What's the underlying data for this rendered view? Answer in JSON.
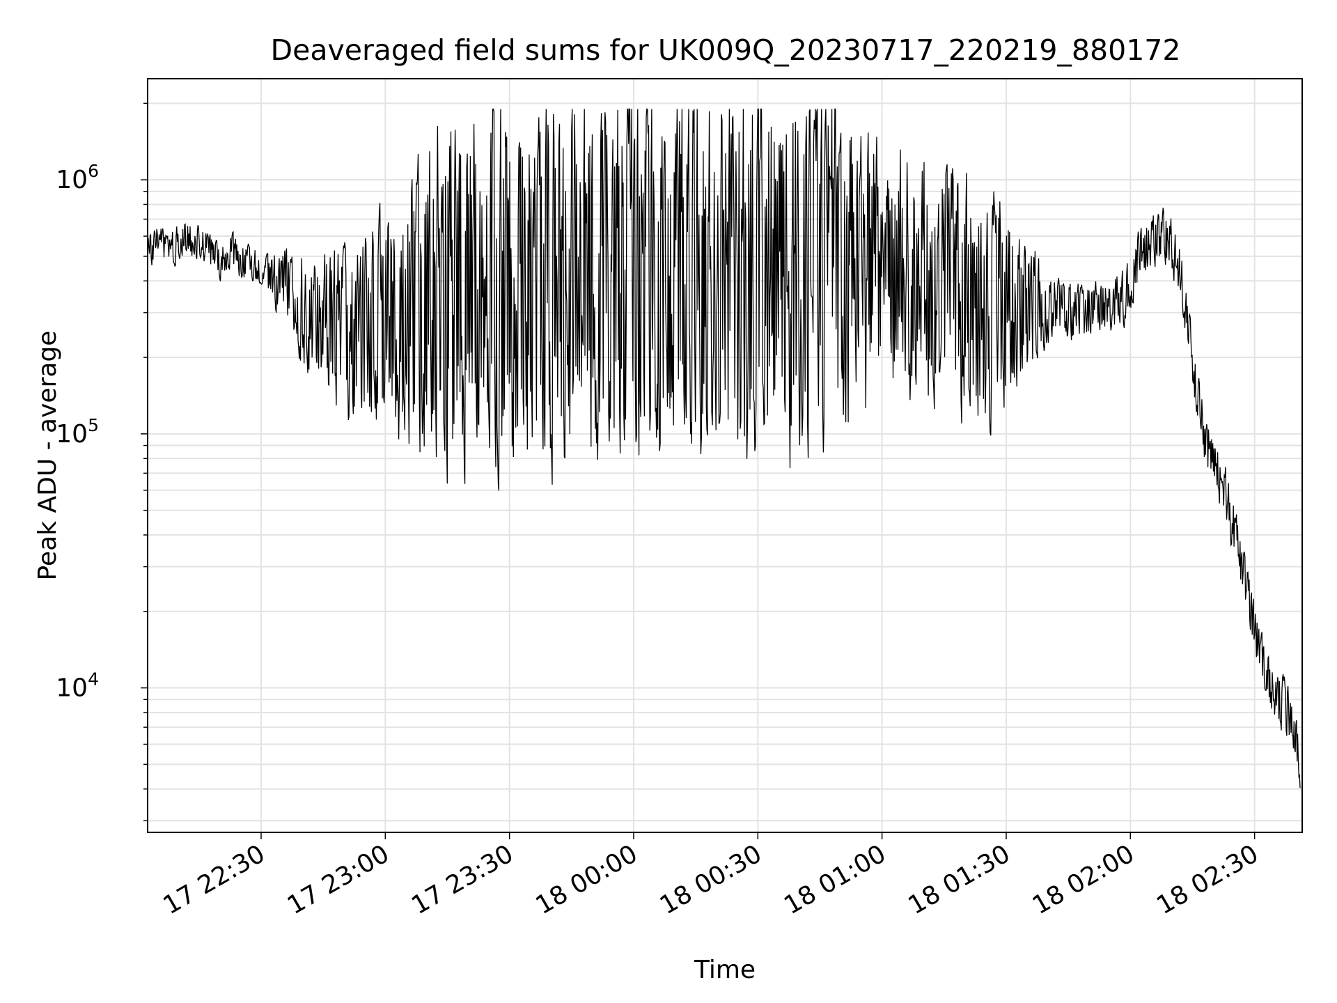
{
  "chart_data": {
    "type": "line",
    "title": "Deaveraged field sums for UK009Q_20230717_220219_880172",
    "xlabel": "Time",
    "ylabel": "Peak ADU - average",
    "yscale": "log",
    "xlim": [
      "2023-07-17 22:02:35",
      "2023-07-18 02:41:30"
    ],
    "ylim": [
      2700,
      2500000
    ],
    "x_ticks": [
      "17 22:30",
      "17 23:00",
      "17 23:30",
      "18 00:00",
      "18 00:30",
      "18 01:00",
      "18 01:30",
      "18 02:00",
      "18 02:30"
    ],
    "y_ticks": [
      {
        "base": "10",
        "exp": "4"
      },
      {
        "base": "10",
        "exp": "5"
      },
      {
        "base": "10",
        "exp": "6"
      }
    ],
    "grid": true,
    "line_color": "#000000",
    "series": [
      {
        "x": [
          "2023-07-17 22:02",
          "2023-07-17 22:05",
          "2023-07-17 22:08",
          "2023-07-17 22:11",
          "2023-07-17 22:14",
          "2023-07-17 22:17",
          "2023-07-17 22:20",
          "2023-07-17 22:23",
          "2023-07-17 22:26",
          "2023-07-17 22:29",
          "2023-07-17 22:32",
          "2023-07-17 22:35",
          "2023-07-17 22:38",
          "2023-07-17 22:41",
          "2023-07-17 22:44",
          "2023-07-17 22:47",
          "2023-07-17 22:50",
          "2023-07-17 22:53",
          "2023-07-17 22:56",
          "2023-07-17 22:59",
          "2023-07-17 23:02",
          "2023-07-17 23:05",
          "2023-07-17 23:08",
          "2023-07-17 23:11",
          "2023-07-17 23:14",
          "2023-07-17 23:17",
          "2023-07-17 23:20",
          "2023-07-17 23:23",
          "2023-07-17 23:26",
          "2023-07-17 23:29",
          "2023-07-17 23:32",
          "2023-07-17 23:35",
          "2023-07-17 23:38",
          "2023-07-17 23:41",
          "2023-07-17 23:44",
          "2023-07-17 23:47",
          "2023-07-17 23:50",
          "2023-07-17 23:53",
          "2023-07-17 23:56",
          "2023-07-17 23:59",
          "2023-07-18 00:02",
          "2023-07-18 00:05",
          "2023-07-18 00:08",
          "2023-07-18 00:11",
          "2023-07-18 00:14",
          "2023-07-18 00:17",
          "2023-07-18 00:20",
          "2023-07-18 00:23",
          "2023-07-18 00:26",
          "2023-07-18 00:29",
          "2023-07-18 00:32",
          "2023-07-18 00:35",
          "2023-07-18 00:38",
          "2023-07-18 00:41",
          "2023-07-18 00:44",
          "2023-07-18 00:47",
          "2023-07-18 00:50",
          "2023-07-18 00:53",
          "2023-07-18 00:56",
          "2023-07-18 00:59",
          "2023-07-18 01:02",
          "2023-07-18 01:05",
          "2023-07-18 01:08",
          "2023-07-18 01:11",
          "2023-07-18 01:14",
          "2023-07-18 01:17",
          "2023-07-18 01:20",
          "2023-07-18 01:23",
          "2023-07-18 01:26",
          "2023-07-18 01:29",
          "2023-07-18 01:32",
          "2023-07-18 01:35",
          "2023-07-18 01:38",
          "2023-07-18 01:41",
          "2023-07-18 01:44",
          "2023-07-18 01:47",
          "2023-07-18 01:50",
          "2023-07-18 01:53",
          "2023-07-18 01:56",
          "2023-07-18 01:59",
          "2023-07-18 02:02",
          "2023-07-18 02:05",
          "2023-07-18 02:08",
          "2023-07-18 02:10",
          "2023-07-18 02:12",
          "2023-07-18 02:14",
          "2023-07-18 02:16",
          "2023-07-18 02:18",
          "2023-07-18 02:20",
          "2023-07-18 02:22",
          "2023-07-18 02:24",
          "2023-07-18 02:26",
          "2023-07-18 02:28",
          "2023-07-18 02:30",
          "2023-07-18 02:32",
          "2023-07-18 02:34",
          "2023-07-18 02:36",
          "2023-07-18 02:38",
          "2023-07-18 02:40",
          "2023-07-18 02:41"
        ],
        "y": [
          500000,
          560000,
          520000,
          600000,
          580000,
          540000,
          470000,
          520000,
          480000,
          450000,
          420000,
          380000,
          340000,
          300000,
          280000,
          260000,
          240000,
          230000,
          250000,
          280000,
          300000,
          310000,
          330000,
          350000,
          360000,
          370000,
          380000,
          390000,
          400000,
          390000,
          380000,
          400000,
          410000,
          390000,
          380000,
          400000,
          420000,
          410000,
          400000,
          420000,
          430000,
          410000,
          400000,
          420000,
          440000,
          430000,
          420000,
          410000,
          400000,
          420000,
          430000,
          440000,
          420000,
          410000,
          430000,
          450000,
          440000,
          420000,
          410000,
          430000,
          440000,
          450000,
          430000,
          400000,
          380000,
          370000,
          360000,
          340000,
          330000,
          320000,
          310000,
          300000,
          320000,
          310000,
          300000,
          310000,
          300000,
          320000,
          330000,
          350000,
          500000,
          560000,
          600000,
          560000,
          420000,
          270000,
          150000,
          95000,
          80000,
          65000,
          50000,
          35000,
          24000,
          17000,
          13000,
          10000,
          9000,
          8000,
          6500,
          5000
        ]
      }
    ]
  }
}
